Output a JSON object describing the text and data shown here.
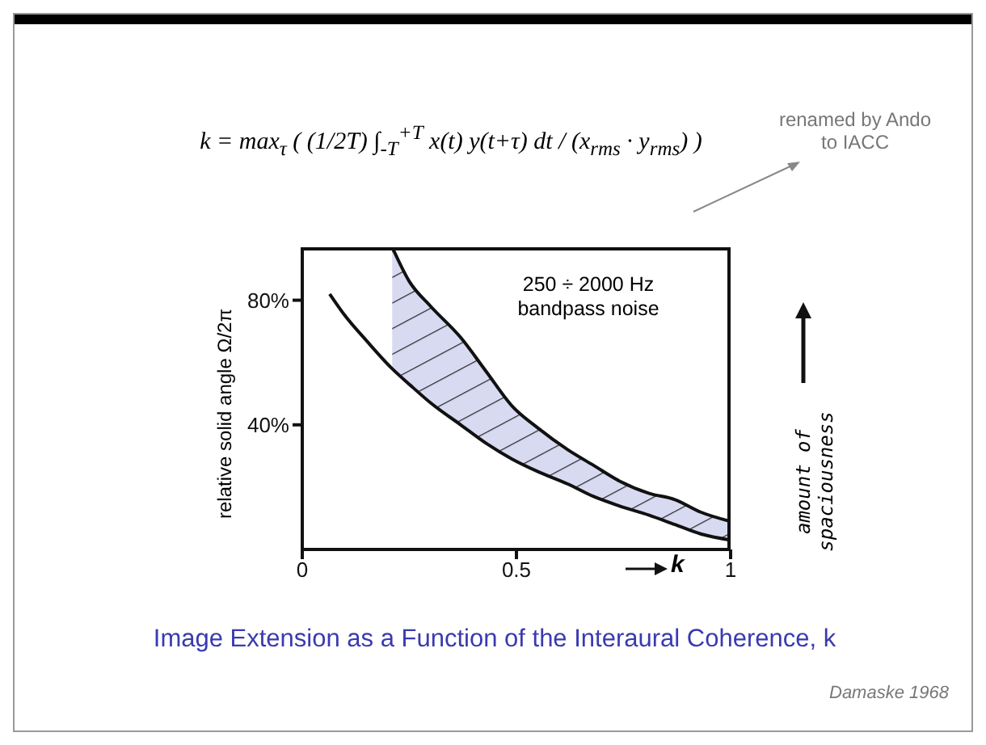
{
  "chart_data": {
    "type": "area",
    "title": "Image Extension as a Function of the Interaural Coherence, k",
    "xlabel": "k",
    "ylabel": "relative solid angle Ω/2π",
    "annotations": [
      "k = max$_{τ}$ ( (1/2T) ∫$_{-T}$$^{+T}$ x(t) y(t+τ) dt / (x$_{rms}$ · y$_{rms}$) )",
      "renamed by Ando to IACC",
      "250 ÷ 2000 Hz bandpass noise",
      "amount of spaciousness",
      "Damaske 1968"
    ],
    "x": [
      0.064,
      0.1,
      0.15,
      0.21,
      0.25,
      0.3,
      0.37,
      0.43,
      0.49,
      0.55,
      0.62,
      0.68,
      0.74,
      0.81,
      0.87,
      0.93,
      1.0
    ],
    "series": [
      {
        "color": "#d8daf2",
        "values": [
          null,
          null,
          null,
          97,
          86,
          78,
          68,
          57,
          46,
          39,
          32,
          27,
          22,
          18,
          16,
          12,
          9
        ]
      },
      {
        "color": "#ffffff",
        "values": [
          82,
          75,
          67,
          58,
          53,
          47,
          40,
          34,
          29,
          25,
          21,
          17,
          14,
          11,
          8,
          5,
          3
        ]
      }
    ],
    "xlim": [
      0,
      1
    ],
    "xticks": [
      0,
      0.5,
      1
    ],
    "ylim": [
      0,
      97
    ],
    "yticks": [
      {
        "value": 40,
        "label": "40%"
      },
      {
        "value": 80,
        "label": "80%"
      }
    ],
    "grid": false,
    "legend": false
  }
}
